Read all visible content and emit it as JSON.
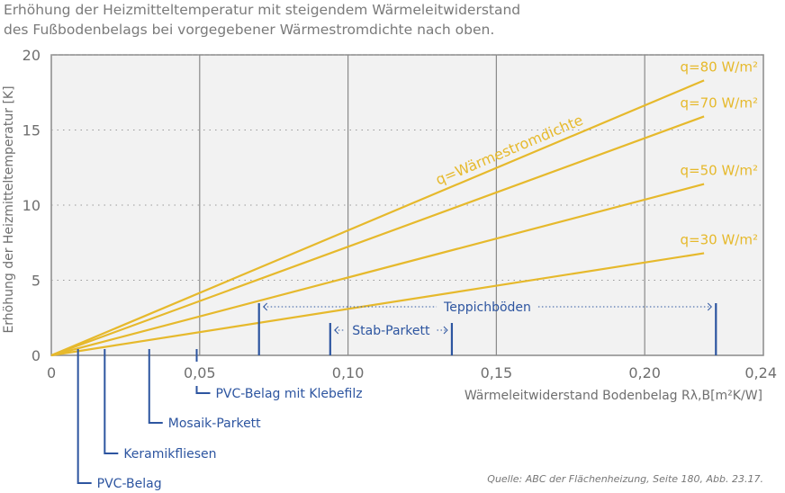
{
  "title_lines": [
    "Erhöhung der Heizmitteltemperatur mit steigendem Wärmeleitwiderstand",
    "des Fußbodenbelags bei vorgegebener Wärmestromdichte nach oben."
  ],
  "source": "Quelle: ABC der Flächenheizung, Seite 180, Abb. 23.17.",
  "colors": {
    "lines": "#e6b92c",
    "markers": "#2d55a0",
    "plot_bg": "#f2f2f2",
    "axis": "#8a8a8a"
  },
  "chart_data": {
    "type": "line",
    "title": "Erhöhung der Heizmitteltemperatur mit steigendem Wärmeleitwiderstand des Fußbodenbelags bei vorgegebener Wärmestromdichte nach oben.",
    "xlabel": "Wärmeleitwiderstand Bodenbelag Rλ,B[m²K/W]",
    "ylabel": "Erhöhung der Heizmitteltemperatur [K]",
    "xlim": [
      0,
      0.24
    ],
    "ylim": [
      0,
      20
    ],
    "xticks": [
      0,
      0.05,
      0.1,
      0.15,
      0.2,
      0.24
    ],
    "xtick_labels": [
      "0",
      "0,05",
      "0,10",
      "0,15",
      "0,20",
      "0,24"
    ],
    "yticks": [
      0,
      5,
      10,
      15,
      20
    ],
    "ytick_labels": [
      "0",
      "5",
      "10",
      "15",
      "20"
    ],
    "grid": true,
    "curve_annotation": "q=Wärmestromdichte",
    "series": [
      {
        "name": "q=80 W/m²",
        "x": [
          0,
          0.22
        ],
        "y": [
          0,
          18.3
        ]
      },
      {
        "name": "q=70 W/m²",
        "x": [
          0,
          0.22
        ],
        "y": [
          0,
          15.9
        ]
      },
      {
        "name": "q=50 W/m²",
        "x": [
          0,
          0.22
        ],
        "y": [
          0,
          11.4
        ]
      },
      {
        "name": "q=30 W/m²",
        "x": [
          0,
          0.22
        ],
        "y": [
          0,
          6.8
        ]
      }
    ],
    "point_markers": [
      {
        "label": "PVC-Belag",
        "x": 0.009
      },
      {
        "label": "Keramikfliesen",
        "x": 0.018
      },
      {
        "label": "Mosaik-Parkett",
        "x": 0.033
      },
      {
        "label": "PVC-Belag mit Klebefilz",
        "x": 0.049
      }
    ],
    "range_markers": [
      {
        "label": "Stab-Parkett",
        "x_from": 0.094,
        "x_to": 0.135
      },
      {
        "label": "Teppichböden",
        "x_from": 0.07,
        "x_to": 0.224
      }
    ]
  }
}
